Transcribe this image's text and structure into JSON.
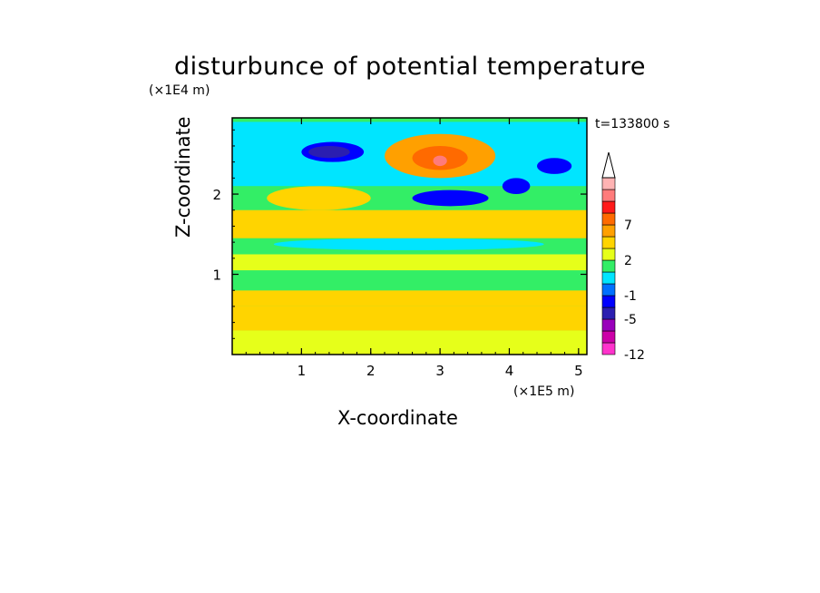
{
  "chart_data": {
    "type": "heatmap",
    "title": "disturbunce of potential temperature",
    "xlabel": "X-coordinate",
    "ylabel": "Z-coordinate",
    "x_multiplier": "(×1E5 m)",
    "y_multiplier": "(×1E4 m)",
    "time_label": "t=133800 s",
    "xlim": [
      0,
      5.12
    ],
    "ylim": [
      0,
      2.95
    ],
    "x_ticks": [
      "1",
      "2",
      "3",
      "4",
      "5"
    ],
    "y_ticks": [
      "1",
      "2"
    ],
    "colorbar": {
      "levels": [
        -12,
        -10,
        -8,
        -5,
        -3,
        -1,
        0,
        1,
        2,
        3,
        5,
        7,
        8,
        9
      ],
      "labels": [
        "-12",
        "-5",
        "-1",
        "2",
        "7"
      ],
      "colors": [
        "#ff33cc",
        "#cc00a8",
        "#9900bb",
        "#2b1eb0",
        "#0000ff",
        "#0070ff",
        "#00e5ff",
        "#33ee66",
        "#e6ff1a",
        "#ffd400",
        "#ffa000",
        "#ff6a00",
        "#ff1a1a",
        "#ff7b7b",
        "#ffb3b3"
      ],
      "extend": "max"
    },
    "regions": [
      {
        "value": 1.5,
        "x": [
          0,
          5.12
        ],
        "z": [
          0.0,
          0.3
        ]
      },
      {
        "value": 2.5,
        "x": [
          0,
          5.12
        ],
        "z": [
          0.3,
          0.6
        ]
      },
      {
        "value": 2.0,
        "x": [
          0,
          5.12
        ],
        "z": [
          0.6,
          0.8
        ]
      },
      {
        "value": 0.5,
        "x": [
          0,
          5.12
        ],
        "z": [
          0.8,
          1.05
        ]
      },
      {
        "value": 1.5,
        "x": [
          0,
          5.12
        ],
        "z": [
          1.05,
          1.25
        ]
      },
      {
        "value": 0.5,
        "x": [
          0,
          5.12
        ],
        "z": [
          1.25,
          1.45
        ]
      },
      {
        "value": -0.5,
        "x": [
          0.6,
          4.5
        ],
        "z": [
          1.3,
          1.45
        ]
      },
      {
        "value": 2.0,
        "x": [
          0,
          5.12
        ],
        "z": [
          1.45,
          1.8
        ]
      },
      {
        "value": 2.5,
        "x": [
          0.5,
          2.0
        ],
        "z": [
          1.8,
          2.1
        ]
      },
      {
        "value": -0.5,
        "x": [
          0,
          5.12
        ],
        "z": [
          2.1,
          2.9
        ]
      },
      {
        "value": -4.0,
        "x": [
          1.0,
          1.9
        ],
        "z": [
          2.4,
          2.65
        ]
      },
      {
        "value": -6.0,
        "x": [
          1.1,
          1.7
        ],
        "z": [
          2.45,
          2.6
        ]
      },
      {
        "value": -4.0,
        "x": [
          2.6,
          3.7
        ],
        "z": [
          1.85,
          2.05
        ]
      },
      {
        "value": -4.0,
        "x": [
          3.9,
          4.3
        ],
        "z": [
          2.0,
          2.2
        ]
      },
      {
        "value": -4.0,
        "x": [
          4.4,
          4.9
        ],
        "z": [
          2.25,
          2.45
        ]
      },
      {
        "value": 4.0,
        "x": [
          2.2,
          3.8
        ],
        "z": [
          2.2,
          2.75
        ]
      },
      {
        "value": 6.0,
        "x": [
          2.6,
          3.4
        ],
        "z": [
          2.3,
          2.6
        ]
      },
      {
        "value": 8.0,
        "x": [
          2.9,
          3.1
        ],
        "z": [
          2.35,
          2.48
        ]
      }
    ]
  }
}
